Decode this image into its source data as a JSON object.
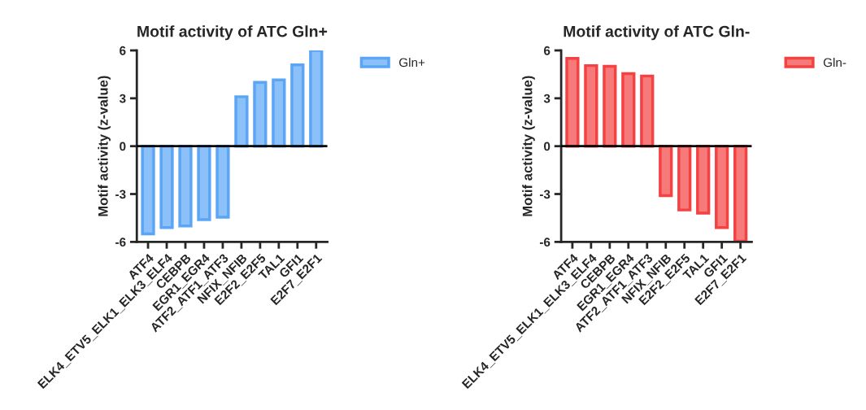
{
  "chart_data": [
    {
      "type": "bar",
      "title": "Motif activity of ATC Gln+",
      "ylabel": "Motif activity (z-value)",
      "categories": [
        "ATF4",
        "ELK4_ETV5_ELK1_ELK3_ELF4",
        "CEBPB",
        "EGR1_EGR4",
        "ATF2_ATF1_ATF3",
        "NFIX_NFIB",
        "E2F2_E2F5",
        "TAL1",
        "GFI1",
        "E2F7_E2F1"
      ],
      "series": [
        {
          "name": "Gln+",
          "color": "#5aa5f5",
          "values": [
            -5.5,
            -5.1,
            -5.0,
            -4.6,
            -4.45,
            3.1,
            4.0,
            4.15,
            5.1,
            6.0
          ]
        }
      ],
      "ylim": [
        -6,
        6
      ],
      "yticks": [
        -6,
        -3,
        0,
        3,
        6
      ],
      "ref_lines": [
        {
          "axis": "y",
          "value": 0,
          "color": "#000000"
        }
      ],
      "grid": false,
      "legend": "top right"
    },
    {
      "type": "bar",
      "title": "Motif activity of ATC Gln-",
      "ylabel": "Motif activity (z-value)",
      "categories": [
        "ATF4",
        "ELK4_ETV5_ELK1_ELK3_ELF4",
        "CEBPB",
        "EGR1_EGR4",
        "ATF2_ATF1_ATF3",
        "NFIX_NFIB",
        "E2F2_E2F5",
        "TAL1",
        "GFI1",
        "E2F7_E2F1"
      ],
      "series": [
        {
          "name": "Gln-",
          "color": "#f44141",
          "values": [
            5.5,
            5.05,
            5.0,
            4.55,
            4.4,
            -3.1,
            -4.0,
            -4.2,
            -5.1,
            -5.95
          ]
        }
      ],
      "ylim": [
        -6,
        6
      ],
      "yticks": [
        -6,
        -3,
        0,
        3,
        6
      ],
      "ref_lines": [
        {
          "axis": "y",
          "value": 0,
          "color": "#000000"
        }
      ],
      "grid": false,
      "legend": "top right"
    }
  ]
}
